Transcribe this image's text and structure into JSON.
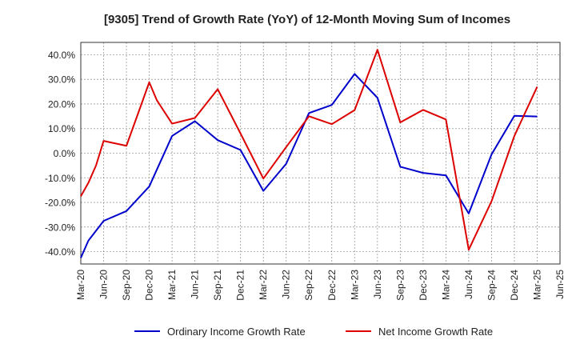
{
  "chart_data": {
    "type": "line",
    "title": "[9305]  Trend of Growth Rate (YoY) of 12-Month Moving Sum of Incomes",
    "xlabel": "",
    "ylabel": "",
    "ylim": [
      -45,
      45
    ],
    "y_ticks": [
      -40,
      -30,
      -20,
      -10,
      0,
      10,
      20,
      30,
      40
    ],
    "y_tick_labels": [
      "-40.0%",
      "-30.0%",
      "-20.0%",
      "-10.0%",
      "0.0%",
      "10.0%",
      "20.0%",
      "30.0%",
      "40.0%"
    ],
    "x_ticks": [
      "Mar-20",
      "Jun-20",
      "Sep-20",
      "Dec-20",
      "Mar-21",
      "Jun-21",
      "Sep-21",
      "Dec-21",
      "Mar-22",
      "Jun-22",
      "Sep-22",
      "Dec-22",
      "Mar-23",
      "Jun-23",
      "Sep-23",
      "Dec-23",
      "Mar-24",
      "Jun-24",
      "Sep-24",
      "Dec-24",
      "Mar-25",
      "Jun-25"
    ],
    "grid": true,
    "legend_position": "bottom",
    "series": [
      {
        "name": "Ordinary Income Growth Rate",
        "color": "#0000cc",
        "points": [
          [
            "Mar-20",
            -42.5
          ],
          [
            "Apr-20",
            -35.5
          ],
          [
            "Jun-20",
            -27.5
          ],
          [
            "Sep-20",
            -23.5
          ],
          [
            "Dec-20",
            -13.5
          ],
          [
            "Mar-21",
            7.0
          ],
          [
            "Jun-21",
            13.0
          ],
          [
            "Sep-21",
            5.3
          ],
          [
            "Dec-21",
            1.3
          ],
          [
            "Mar-22",
            -15.3
          ],
          [
            "Jun-22",
            -4.3
          ],
          [
            "Sep-22",
            16.3
          ],
          [
            "Dec-22",
            19.6
          ],
          [
            "Mar-23",
            32.2
          ],
          [
            "Jun-23",
            22.5
          ],
          [
            "Sep-23",
            -5.5
          ],
          [
            "Dec-23",
            -8.0
          ],
          [
            "Mar-24",
            -9.0
          ],
          [
            "Jun-24",
            -24.5
          ],
          [
            "Sep-24",
            -0.5
          ],
          [
            "Dec-24",
            15.2
          ],
          [
            "Mar-25",
            14.9
          ]
        ]
      },
      {
        "name": "Net Income Growth Rate",
        "color": "#dd0000",
        "points": [
          [
            "Mar-20",
            -17.5
          ],
          [
            "Apr-20",
            -12.0
          ],
          [
            "May-20",
            -5.0
          ],
          [
            "Jun-20",
            5.0
          ],
          [
            "Sep-20",
            3.0
          ],
          [
            "Dec-20",
            28.8
          ],
          [
            "Jan-21",
            21.5
          ],
          [
            "Mar-21",
            12.0
          ],
          [
            "Jun-21",
            14.3
          ],
          [
            "Sep-21",
            26.0
          ],
          [
            "Dec-21",
            8.0
          ],
          [
            "Mar-22",
            -10.3
          ],
          [
            "Jun-22",
            2.5
          ],
          [
            "Sep-22",
            15.0
          ],
          [
            "Dec-22",
            11.8
          ],
          [
            "Mar-23",
            17.5
          ],
          [
            "Jun-23",
            42.0
          ],
          [
            "Sep-23",
            12.5
          ],
          [
            "Dec-23",
            17.6
          ],
          [
            "Mar-24",
            13.7
          ],
          [
            "Jun-24",
            -39.2
          ],
          [
            "Sep-24",
            -19.5
          ],
          [
            "Dec-24",
            7.0
          ],
          [
            "Mar-25",
            27.0
          ]
        ]
      }
    ]
  }
}
